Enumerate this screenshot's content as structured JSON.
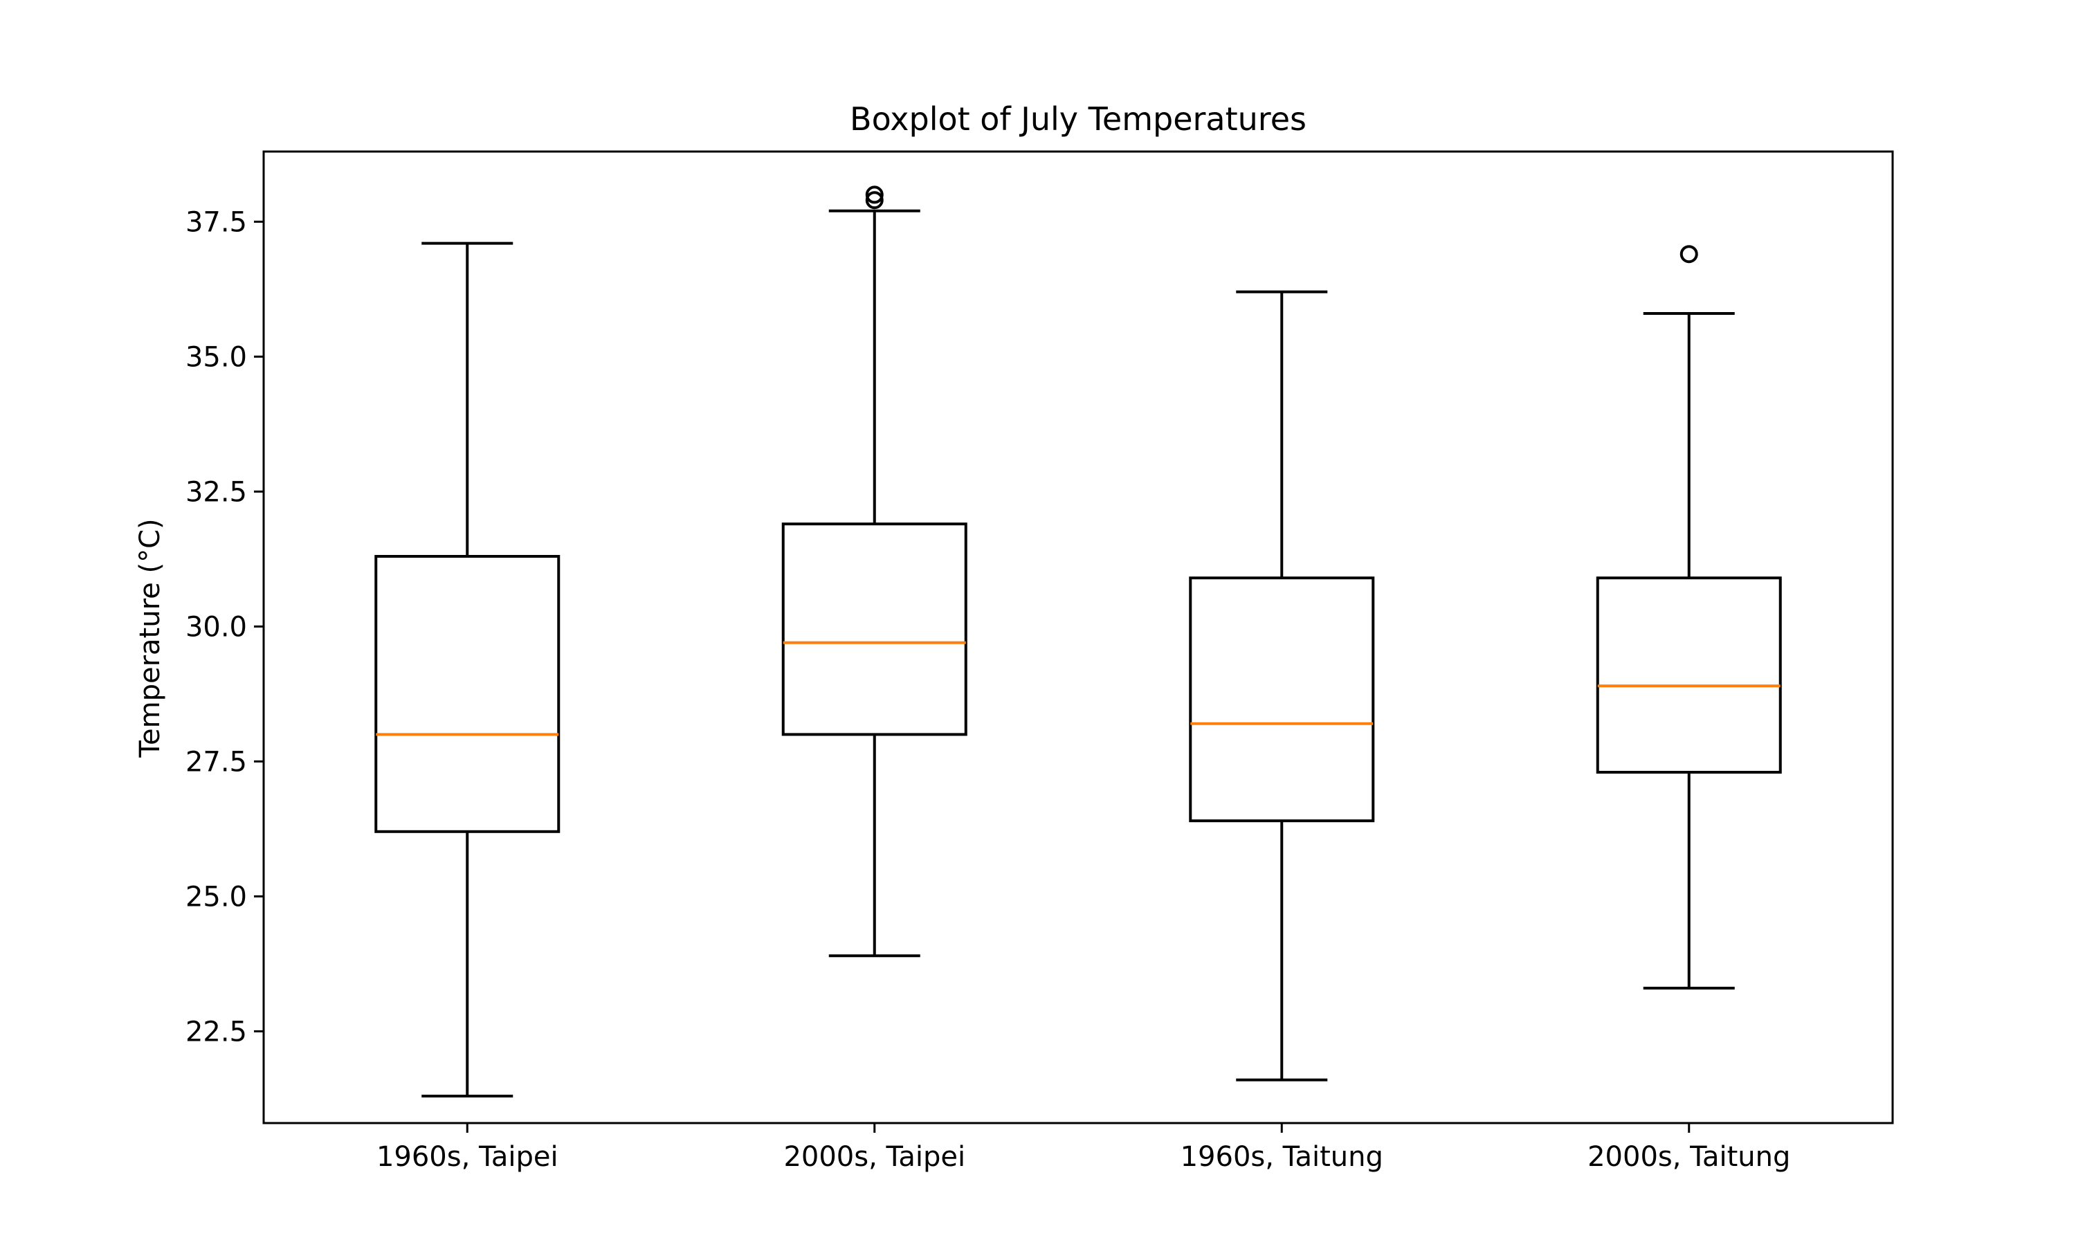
{
  "chart_data": {
    "type": "boxplot",
    "title": "Boxplot of July Temperatures",
    "xlabel": "",
    "ylabel": "Temperature (°C)",
    "ylim": [
      20.8,
      38.8
    ],
    "yticks": [
      22.5,
      25.0,
      27.5,
      30.0,
      32.5,
      35.0,
      37.5
    ],
    "ytick_labels": [
      "22.5",
      "25.0",
      "27.5",
      "30.0",
      "32.5",
      "35.0",
      "37.5"
    ],
    "grid": false,
    "categories": [
      "1960s, Taipei",
      "2000s, Taipei",
      "1960s, Taitung",
      "2000s, Taitung"
    ],
    "boxes": [
      {
        "category": "1960s, Taipei",
        "whisker_low": 21.3,
        "q1": 26.2,
        "median": 28.0,
        "q3": 31.3,
        "whisker_high": 37.1,
        "outliers": []
      },
      {
        "category": "2000s, Taipei",
        "whisker_low": 23.9,
        "q1": 28.0,
        "median": 29.7,
        "q3": 31.9,
        "whisker_high": 37.7,
        "outliers": [
          37.9,
          38.0
        ]
      },
      {
        "category": "1960s, Taitung",
        "whisker_low": 21.6,
        "q1": 26.4,
        "median": 28.2,
        "q3": 30.9,
        "whisker_high": 36.2,
        "outliers": []
      },
      {
        "category": "2000s, Taitung",
        "whisker_low": 23.3,
        "q1": 27.3,
        "median": 28.9,
        "q3": 30.9,
        "whisker_high": 35.8,
        "outliers": [
          36.9
        ]
      }
    ],
    "colors": {
      "box": "#000000",
      "median": "#ff7f0e",
      "background": "#ffffff"
    }
  }
}
